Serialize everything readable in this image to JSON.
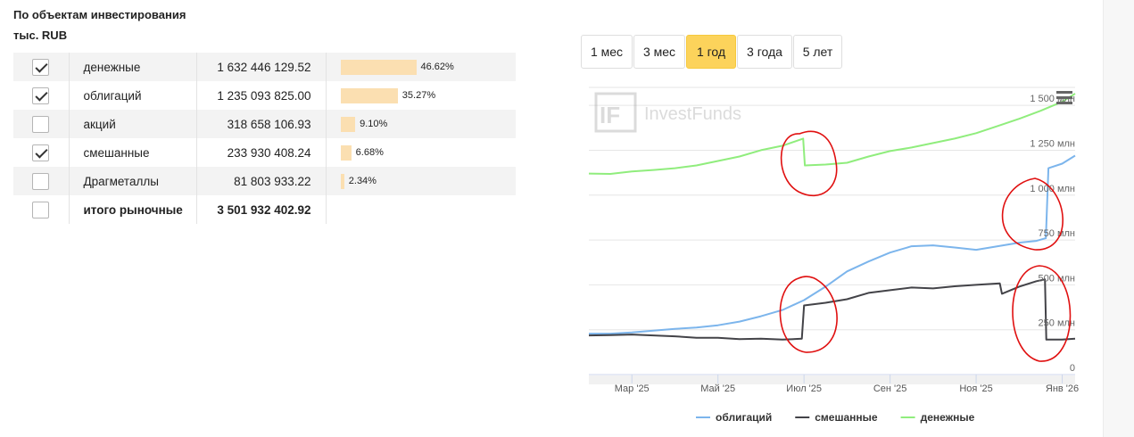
{
  "header": {
    "title": "По объектам инвестирования",
    "unit": "тыс. RUB"
  },
  "rows": [
    {
      "name": "денежные",
      "value": "1 632 446 129.52",
      "pct": "46.62%",
      "share": 46.62,
      "checked": true
    },
    {
      "name": "облигаций",
      "value": "1 235 093 825.00",
      "pct": "35.27%",
      "share": 35.27,
      "checked": true
    },
    {
      "name": "акций",
      "value": "318 658 106.93",
      "pct": "9.10%",
      "share": 9.1,
      "checked": false
    },
    {
      "name": "смешанные",
      "value": "233 930 408.24",
      "pct": "6.68%",
      "share": 6.68,
      "checked": true
    },
    {
      "name": "Драгметаллы",
      "value": "81 803 933.22",
      "pct": "2.34%",
      "share": 2.34,
      "checked": false
    }
  ],
  "total": {
    "name": "итого рыночные",
    "value": "3 501 932 402.92",
    "checked": false
  },
  "periods": [
    {
      "label": "1 мес",
      "active": false
    },
    {
      "label": "3 мес",
      "active": false
    },
    {
      "label": "1 год",
      "active": true
    },
    {
      "label": "3 года",
      "active": false
    },
    {
      "label": "5 лет",
      "active": false
    }
  ],
  "colors": {
    "bar": "#fbdfb1",
    "accent": "#fcd35b",
    "bonds": "#7cb5ec",
    "mixed": "#434348",
    "money": "#90ed7d",
    "annotation": "#e01010"
  },
  "watermark": "InvestFunds",
  "watermark_mark": "IF",
  "menu_icon": "hamburger-icon",
  "chart_data": {
    "type": "line",
    "y_unit": "млн",
    "ylim": [
      0,
      1600
    ],
    "y_ticks": [
      {
        "value": 0,
        "label": "0"
      },
      {
        "value": 250,
        "label": "250 млн"
      },
      {
        "value": 500,
        "label": "500 млн"
      },
      {
        "value": 750,
        "label": "750 млн"
      },
      {
        "value": 1000,
        "label": "1 000 млн"
      },
      {
        "value": 1250,
        "label": "1 250 млн"
      },
      {
        "value": 1500,
        "label": "1 500 млн"
      }
    ],
    "x_range": [
      0,
      11.3
    ],
    "x_ticks": [
      {
        "value": 1,
        "label": "Мар '25"
      },
      {
        "value": 3,
        "label": "Май '25"
      },
      {
        "value": 5,
        "label": "Июл '25"
      },
      {
        "value": 7,
        "label": "Сен '25"
      },
      {
        "value": 9,
        "label": "Ноя '25"
      },
      {
        "value": 11,
        "label": "Янв '26"
      }
    ],
    "series": [
      {
        "name": "облигаций",
        "color": "#7cb5ec",
        "points": [
          [
            0,
            228
          ],
          [
            0.5,
            228
          ],
          [
            1,
            235
          ],
          [
            1.5,
            245
          ],
          [
            2,
            255
          ],
          [
            2.5,
            262
          ],
          [
            3,
            275
          ],
          [
            3.5,
            295
          ],
          [
            4,
            325
          ],
          [
            4.5,
            360
          ],
          [
            5,
            415
          ],
          [
            5.5,
            490
          ],
          [
            6,
            575
          ],
          [
            6.5,
            630
          ],
          [
            7,
            680
          ],
          [
            7.5,
            715
          ],
          [
            8,
            720
          ],
          [
            8.5,
            708
          ],
          [
            9,
            695
          ],
          [
            9.5,
            715
          ],
          [
            10,
            735
          ],
          [
            10.4,
            745
          ],
          [
            10.62,
            760
          ],
          [
            10.68,
            1150
          ],
          [
            11,
            1175
          ],
          [
            11.3,
            1220
          ]
        ]
      },
      {
        "name": "смешанные",
        "color": "#434348",
        "points": [
          [
            0,
            218
          ],
          [
            0.5,
            220
          ],
          [
            1,
            223
          ],
          [
            1.5,
            218
          ],
          [
            2,
            213
          ],
          [
            2.5,
            205
          ],
          [
            3,
            205
          ],
          [
            3.5,
            198
          ],
          [
            4,
            200
          ],
          [
            4.5,
            195
          ],
          [
            4.95,
            200
          ],
          [
            5,
            385
          ],
          [
            5.5,
            400
          ],
          [
            6,
            420
          ],
          [
            6.5,
            455
          ],
          [
            7,
            470
          ],
          [
            7.5,
            485
          ],
          [
            8,
            480
          ],
          [
            8.5,
            492
          ],
          [
            9,
            500
          ],
          [
            9.55,
            508
          ],
          [
            9.6,
            450
          ],
          [
            10,
            490
          ],
          [
            10.4,
            520
          ],
          [
            10.6,
            530
          ],
          [
            10.63,
            195
          ],
          [
            11,
            195
          ],
          [
            11.3,
            200
          ]
        ]
      },
      {
        "name": "денежные",
        "color": "#90ed7d",
        "points": [
          [
            0,
            1120
          ],
          [
            0.5,
            1118
          ],
          [
            1,
            1132
          ],
          [
            1.5,
            1140
          ],
          [
            2,
            1150
          ],
          [
            2.5,
            1165
          ],
          [
            3,
            1190
          ],
          [
            3.5,
            1215
          ],
          [
            4,
            1250
          ],
          [
            4.5,
            1275
          ],
          [
            4.98,
            1315
          ],
          [
            5.02,
            1165
          ],
          [
            5.5,
            1170
          ],
          [
            6,
            1180
          ],
          [
            6.5,
            1215
          ],
          [
            7,
            1245
          ],
          [
            7.5,
            1265
          ],
          [
            8,
            1290
          ],
          [
            8.5,
            1315
          ],
          [
            9,
            1345
          ],
          [
            9.5,
            1385
          ],
          [
            10,
            1425
          ],
          [
            10.5,
            1470
          ],
          [
            11,
            1520
          ],
          [
            11.3,
            1565
          ]
        ]
      }
    ]
  }
}
